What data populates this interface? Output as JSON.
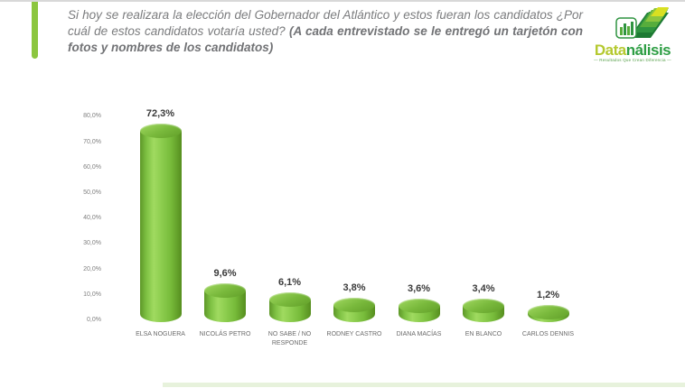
{
  "header": {
    "title_regular": "Si hoy se realizara la elección del Gobernador del Atlántico y estos fueran los candidatos ¿Por cuál de estos candidatos votaría usted? ",
    "title_bold": "(A cada entrevistado se le entregó un tarjetón con fotos y nombres de los candidatos)"
  },
  "logo": {
    "brand_part1": "Data",
    "brand_part2": "nálisis",
    "tagline": "— Resultados Que Crean Diferencia —"
  },
  "colors": {
    "accent_green": "#8CC63F",
    "bar_green": "#7CC142",
    "brand_yellow_green": "#B5C92F",
    "brand_green": "#2E9E44",
    "title_gray": "#7B7C7E"
  },
  "chart_data": {
    "type": "bar",
    "style": "3d-cylinder",
    "title": "",
    "xlabel": "",
    "ylabel": "",
    "categories": [
      "ELSA NOGUERA",
      "NICOLÁS PETRO",
      "NO SABE / NO RESPONDE",
      "RODNEY CASTRO",
      "DIANA MACÍAS",
      "EN BLANCO",
      "CARLOS DENNIS"
    ],
    "values": [
      72.3,
      9.6,
      6.1,
      3.8,
      3.6,
      3.4,
      1.2
    ],
    "value_labels": [
      "72,3%",
      "9,6%",
      "6,1%",
      "3,8%",
      "3,6%",
      "3,4%",
      "1,2%"
    ],
    "y_ticks": [
      {
        "value": 0,
        "label": "0,0%"
      },
      {
        "value": 10,
        "label": "10,0%"
      },
      {
        "value": 20,
        "label": "20,0%"
      },
      {
        "value": 30,
        "label": "30,0%"
      },
      {
        "value": 40,
        "label": "40,0%"
      },
      {
        "value": 50,
        "label": "50,0%"
      },
      {
        "value": 60,
        "label": "60,0%"
      },
      {
        "value": 70,
        "label": "70,0%"
      },
      {
        "value": 80,
        "label": "80,0%"
      }
    ],
    "ylim": [
      0,
      80
    ],
    "grid": false,
    "legend": false
  }
}
